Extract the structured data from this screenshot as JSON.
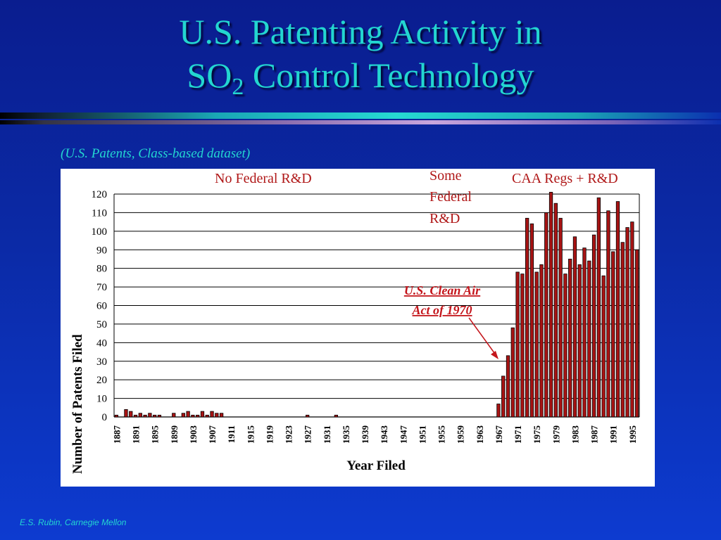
{
  "slide": {
    "title_line1": "U.S. Patenting Activity in",
    "title_line2_pre": "SO",
    "title_line2_sub": "2",
    "title_line2_post": " Control Technology",
    "subtitle": "(U.S. Patents, Class-based dataset)",
    "footer": "E.S. Rubin, Carnegie Mellon"
  },
  "colors": {
    "title": "#23d6d0",
    "bar": "#a81414",
    "bar_outline": "#000000",
    "annotation": "#c4161c"
  },
  "chart_data": {
    "type": "bar",
    "xlabel": "Year Filed",
    "ylabel": "Number of Patents Filed",
    "ylim": [
      0,
      120
    ],
    "yticks": [
      0,
      10,
      20,
      30,
      40,
      50,
      60,
      70,
      80,
      90,
      100,
      110,
      120
    ],
    "xtick_labels": [
      "1887",
      "1891",
      "1895",
      "1899",
      "1903",
      "1907",
      "1911",
      "1915",
      "1919",
      "1923",
      "1927",
      "1931",
      "1935",
      "1939",
      "1943",
      "1947",
      "1951",
      "1955",
      "1959",
      "1963",
      "1967",
      "1971",
      "1975",
      "1979",
      "1983",
      "1987",
      "1991",
      "1995"
    ],
    "grid": "horizontal",
    "regions": [
      {
        "label": "No Federal R&D"
      },
      {
        "label_lines": [
          "Some",
          "Federal",
          "R&D"
        ]
      },
      {
        "label": "CAA Regs + R&D"
      }
    ],
    "annotation": {
      "lines": [
        "U.S. Clean Air",
        "Act of 1970"
      ],
      "points_to_year": 1969
    },
    "categories": [
      1887,
      1888,
      1889,
      1890,
      1891,
      1892,
      1893,
      1894,
      1895,
      1896,
      1897,
      1898,
      1899,
      1900,
      1901,
      1902,
      1903,
      1904,
      1905,
      1906,
      1907,
      1908,
      1909,
      1910,
      1911,
      1912,
      1913,
      1914,
      1915,
      1916,
      1917,
      1918,
      1919,
      1920,
      1921,
      1922,
      1923,
      1924,
      1925,
      1926,
      1927,
      1928,
      1929,
      1930,
      1931,
      1932,
      1933,
      1934,
      1935,
      1936,
      1937,
      1938,
      1939,
      1940,
      1941,
      1942,
      1943,
      1944,
      1945,
      1946,
      1947,
      1948,
      1949,
      1950,
      1951,
      1952,
      1953,
      1954,
      1955,
      1956,
      1957,
      1958,
      1959,
      1960,
      1961,
      1962,
      1963,
      1964,
      1965,
      1966,
      1967,
      1968,
      1969,
      1970,
      1971,
      1972,
      1973,
      1974,
      1975,
      1976,
      1977,
      1978,
      1979,
      1980,
      1981,
      1982,
      1983,
      1984,
      1985,
      1986,
      1987,
      1988,
      1989,
      1990,
      1991,
      1992,
      1993,
      1994,
      1995,
      1996
    ],
    "values": [
      1,
      0,
      4,
      3,
      1,
      2,
      1,
      2,
      1,
      1,
      0,
      0,
      2,
      0,
      2,
      3,
      1,
      1,
      3,
      1,
      3,
      2,
      2,
      0,
      0,
      0,
      0,
      0,
      0,
      0,
      0,
      0,
      0,
      0,
      0,
      0,
      0,
      0,
      0,
      0,
      1,
      0,
      0,
      0,
      0,
      0,
      1,
      0,
      0,
      0,
      0,
      0,
      0,
      0,
      0,
      0,
      0,
      0,
      0,
      0,
      0,
      0,
      0,
      0,
      0,
      0,
      0,
      0,
      0,
      0,
      0,
      0,
      0,
      0,
      0,
      0,
      0,
      0,
      0,
      0,
      7,
      22,
      33,
      48,
      78,
      77,
      107,
      104,
      78,
      82,
      110,
      121,
      115,
      107,
      77,
      85,
      97,
      82,
      91,
      84,
      98,
      118,
      76,
      111,
      89,
      116,
      94,
      102,
      105,
      90
    ]
  }
}
